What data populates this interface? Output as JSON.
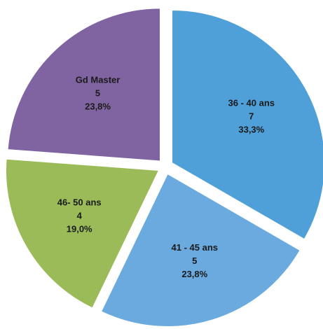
{
  "chart_data": {
    "type": "pie",
    "categories": [
      "36 - 40 ans",
      "41 - 45 ans",
      "46- 50 ans",
      "Gd Master"
    ],
    "values": [
      7,
      5,
      4,
      5
    ],
    "percentages": [
      33.3,
      23.8,
      19.0,
      23.8
    ],
    "percentage_labels": [
      "33,3%",
      "23,8%",
      "19,0%",
      "23,8%"
    ],
    "colors": [
      "#4f9fd8",
      "#6aaadf",
      "#9bbb59",
      "#8064a2"
    ],
    "exploded": true
  }
}
